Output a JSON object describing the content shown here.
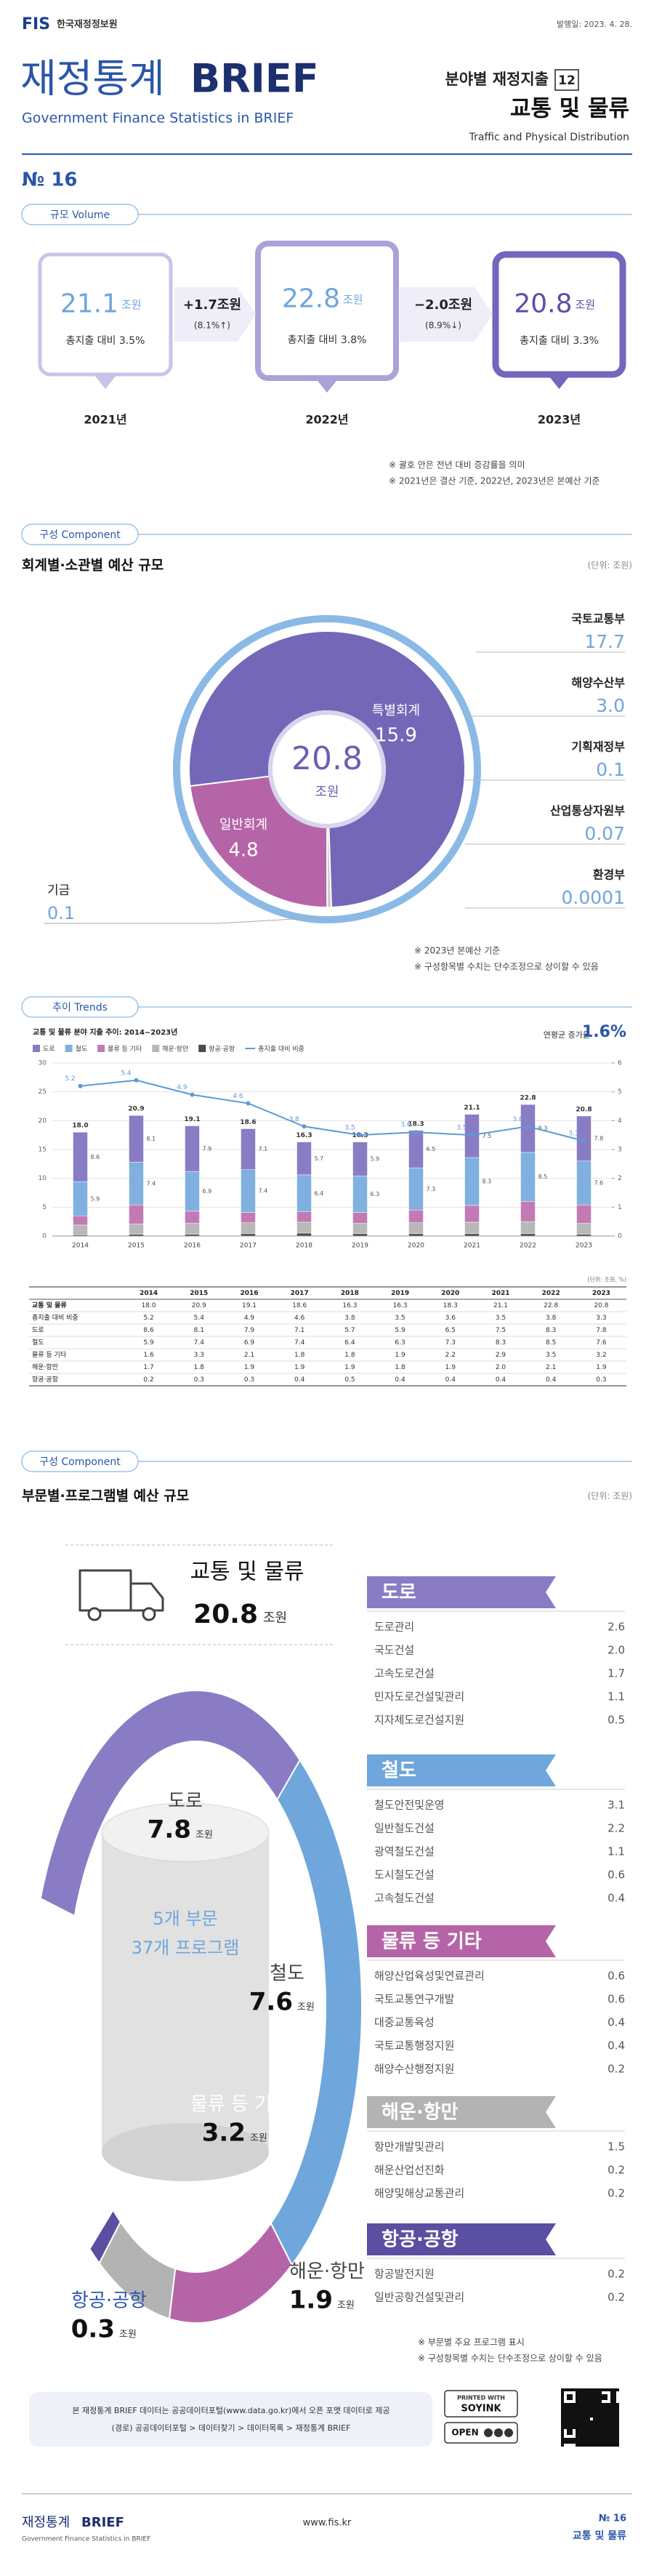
{
  "header": {
    "logo": "FIS",
    "org": "한국재정정보원",
    "date": "발행일: 2023. 4. 28.",
    "title_kr": "재정통계",
    "title_en": "BRIEF",
    "subtitle": "Government Finance Statistics in BRIEF",
    "series": "분야별 재정지출",
    "series_no": "12",
    "topic": "교통 및 물류",
    "topic_en": "Traffic and Physical Distribution",
    "issue": "№ 16"
  },
  "volume": {
    "tag": "규모 Volume",
    "years": [
      {
        "value": "21.1",
        "unit": "조원",
        "share": "총지출 대비 3.5%",
        "year": "2021년"
      },
      {
        "value": "22.8",
        "unit": "조원",
        "share": "총지출 대비 3.8%",
        "year": "2022년"
      },
      {
        "value": "20.8",
        "unit": "조원",
        "share": "총지출 대비 3.3%",
        "year": "2023년"
      }
    ],
    "changes": [
      {
        "value": "+1.7조원",
        "rate": "(8.1%↑)"
      },
      {
        "value": "−2.0조원",
        "rate": "(8.9%↓)"
      }
    ],
    "notes": [
      "※ 괄호 안은 전년 대비 증감률을 의미",
      "※ 2021년은 결산 기준, 2022년, 2023년은 본예산 기준"
    ]
  },
  "account": {
    "tag": "구성 Component",
    "heading": "회계별·소관별 예산 규모",
    "unit": "(단위: 조원)",
    "total": "20.8",
    "total_unit": "조원",
    "accounts": [
      {
        "name": "특별회계",
        "value": 15.9,
        "color": "#7467b8"
      },
      {
        "name": "일반회계",
        "value": 4.8,
        "color": "#b565a7"
      },
      {
        "name": "기금",
        "value": 0.1,
        "color": "#c9c9c9"
      }
    ],
    "ministries": [
      {
        "name": "국토교통부",
        "value": "17.7"
      },
      {
        "name": "해양수산부",
        "value": "3.0"
      },
      {
        "name": "기획재정부",
        "value": "0.1"
      },
      {
        "name": "산업통상자원부",
        "value": "0.07"
      },
      {
        "name": "환경부",
        "value": "0.0001"
      }
    ],
    "notes": [
      "※ 2023년 본예산 기준",
      "※ 구성항목별 수치는 단수조정으로 상이할 수 있음"
    ]
  },
  "trends": {
    "tag": "추이 Trends",
    "growth_label": "연평균 증가율",
    "growth": "1.6%",
    "table": {
      "unit": "(단위: 조원, %)",
      "rows": [
        {
          "label": "교통 및 물류",
          "cells": [
            "18.0",
            "20.9",
            "19.1",
            "18.6",
            "16.3",
            "16.3",
            "18.3",
            "21.1",
            "22.8",
            "20.8"
          ]
        },
        {
          "label": "총지출 대비 비중",
          "cells": [
            "5.2",
            "5.4",
            "4.9",
            "4.6",
            "3.8",
            "3.5",
            "3.6",
            "3.5",
            "3.8",
            "3.3"
          ]
        },
        {
          "label": "도로",
          "cells": [
            "8.6",
            "8.1",
            "7.9",
            "7.1",
            "5.7",
            "5.9",
            "6.5",
            "7.5",
            "8.3",
            "7.8"
          ]
        },
        {
          "label": "철도",
          "cells": [
            "5.9",
            "7.4",
            "6.9",
            "7.4",
            "6.4",
            "6.3",
            "7.3",
            "8.3",
            "8.5",
            "7.6"
          ]
        },
        {
          "label": "물류 등 기타",
          "cells": [
            "1.6",
            "3.3",
            "2.1",
            "1.8",
            "1.8",
            "1.9",
            "2.2",
            "2.9",
            "3.5",
            "3.2"
          ]
        },
        {
          "label": "해운·항만",
          "cells": [
            "1.7",
            "1.8",
            "1.9",
            "1.9",
            "1.9",
            "1.8",
            "1.9",
            "2.0",
            "2.1",
            "1.9"
          ]
        },
        {
          "label": "항공·공항",
          "cells": [
            "0.2",
            "0.3",
            "0.3",
            "0.4",
            "0.5",
            "0.4",
            "0.4",
            "0.4",
            "0.4",
            "0.3"
          ]
        }
      ]
    }
  },
  "chart_data": {
    "type": "bar",
    "title": "교통 및 물류 분야 지출 추이: 2014~2023년",
    "categories": [
      "2014",
      "2015",
      "2016",
      "2017",
      "2018",
      "2019",
      "2020",
      "2021",
      "2022",
      "2023"
    ],
    "total_labels": [
      "18.0",
      "20.9",
      "19.1",
      "18.6",
      "16.3",
      "16.3",
      "18.3",
      "21.1",
      "22.8",
      "20.8"
    ],
    "series": [
      {
        "name": "도로",
        "color": "#8a7cc4",
        "values": [
          8.6,
          8.1,
          7.9,
          7.1,
          5.7,
          5.9,
          6.5,
          7.5,
          8.3,
          7.8
        ]
      },
      {
        "name": "철도",
        "color": "#7fb0e0",
        "values": [
          5.9,
          7.4,
          6.9,
          7.4,
          6.4,
          6.3,
          7.3,
          8.3,
          8.5,
          7.6
        ]
      },
      {
        "name": "물류 등 기타",
        "color": "#c27ab5",
        "values": [
          1.6,
          3.3,
          2.1,
          1.8,
          1.8,
          1.9,
          2.2,
          2.9,
          3.5,
          3.2
        ]
      },
      {
        "name": "해운·항만",
        "color": "#b8b8b8",
        "values": [
          1.7,
          1.8,
          1.9,
          1.9,
          1.9,
          1.8,
          1.9,
          2.0,
          2.1,
          1.9
        ]
      },
      {
        "name": "항공·공항",
        "color": "#4a4a4a",
        "values": [
          0.2,
          0.3,
          0.3,
          0.4,
          0.5,
          0.4,
          0.4,
          0.4,
          0.4,
          0.3
        ]
      },
      {
        "name": "총지출 대비 비중",
        "color": "#5b9bd5",
        "axis": "y2",
        "values": [
          5.2,
          5.4,
          4.9,
          4.6,
          3.8,
          3.5,
          3.6,
          3.5,
          3.8,
          3.3
        ]
      }
    ],
    "ylim": [
      0,
      30
    ],
    "yticks": [
      0,
      5,
      10,
      15,
      20,
      25,
      30
    ],
    "y2lim": [
      0,
      6
    ],
    "y2ticks": [
      0,
      1,
      2,
      3,
      4,
      5,
      6
    ],
    "grid": true
  },
  "sectors": {
    "tag": "구성 Component",
    "heading": "부문별·프로그램별 예산 규모",
    "unit": "(단위: 조원)",
    "topic": "교통 및 물류",
    "total": "20.8",
    "unit_label": "조원",
    "center_1": "5개 부문",
    "center_2": "37개 프로그램",
    "groups": [
      {
        "name": "도로",
        "value": 7.8,
        "color": "#8a7cc4",
        "items": [
          {
            "name": "도로관리",
            "value": "2.6"
          },
          {
            "name": "국도건설",
            "value": "2.0"
          },
          {
            "name": "고속도로건설",
            "value": "1.7"
          },
          {
            "name": "민자도로건설및관리",
            "value": "1.1"
          },
          {
            "name": "지자체도로건설지원",
            "value": "0.5"
          }
        ]
      },
      {
        "name": "철도",
        "value": 7.6,
        "color": "#6fa6dc",
        "items": [
          {
            "name": "철도안전및운영",
            "value": "3.1"
          },
          {
            "name": "일반철도건설",
            "value": "2.2"
          },
          {
            "name": "광역철도건설",
            "value": "1.1"
          },
          {
            "name": "도시철도건설",
            "value": "0.6"
          },
          {
            "name": "고속철도건설",
            "value": "0.4"
          }
        ]
      },
      {
        "name": "물류 등 기타",
        "value": 3.2,
        "color": "#b565a7",
        "items": [
          {
            "name": "해양산업육성및연료관리",
            "value": "0.6"
          },
          {
            "name": "국토교통연구개발",
            "value": "0.6"
          },
          {
            "name": "대중교통육성",
            "value": "0.4"
          },
          {
            "name": "국토교통행정지원",
            "value": "0.4"
          },
          {
            "name": "해양수산행정지원",
            "value": "0.2"
          }
        ]
      },
      {
        "name": "해운·항만",
        "value": 1.9,
        "color": "#b3b3b3",
        "items": [
          {
            "name": "항만개발및관리",
            "value": "1.5"
          },
          {
            "name": "해운산업선진화",
            "value": "0.2"
          },
          {
            "name": "해양및해상교통관리",
            "value": "0.2"
          }
        ]
      },
      {
        "name": "항공·공항",
        "value": 0.3,
        "color": "#5a4fa0",
        "items": [
          {
            "name": "항공발전지원",
            "value": "0.2"
          },
          {
            "name": "일반공항건설및관리",
            "value": "0.2"
          }
        ]
      }
    ],
    "notes": [
      "※ 부문별 주요 프로그램 표시",
      "※ 구성항목별 수치는 단수조정으로 상이할 수 있음"
    ]
  },
  "footer": {
    "data_note_1": "본 재정통계 BRIEF 데이터는 공공데이터포털(www.data.go.kr)에서 오픈 포맷 데이터로 제공",
    "data_note_2": "(경로) 공공데이터포털 > 데이터찾기 > 데이터목록 > 재정통계 BRIEF",
    "soy_1": "PRINTED WITH",
    "soy_2": "SOYINK",
    "open": "OPEN",
    "brand_kr": "재정통계",
    "brand_en": "BRIEF",
    "brand_sub": "Government Finance Statistics in BRIEF",
    "site": "www.fis.kr",
    "issue": "№ 16",
    "topic": "교통 및 물류"
  }
}
